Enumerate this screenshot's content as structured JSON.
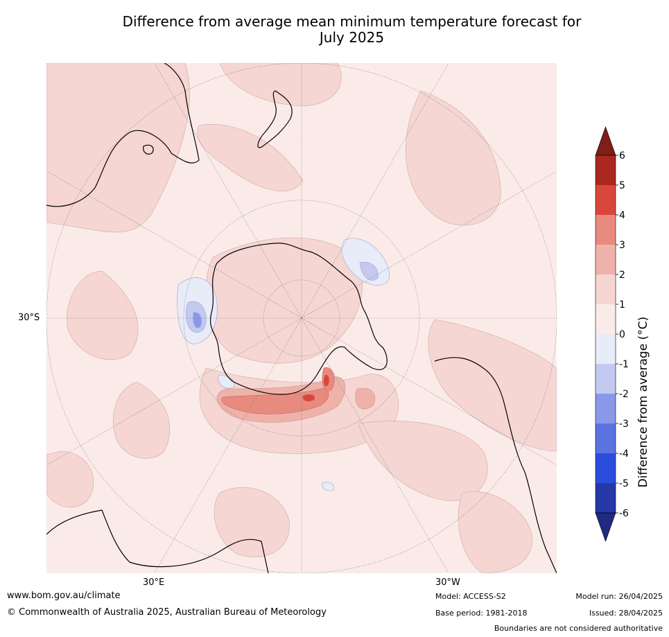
{
  "title": {
    "line1": "Difference from average mean minimum temperature forecast for",
    "line2": "July 2025"
  },
  "map": {
    "projection": "south-polar-stereographic",
    "lat_label": "30°S",
    "lon_labels": [
      "30°E",
      "30°W"
    ],
    "ocean_base_color": "#fbebe8",
    "coastline_color": "#000000"
  },
  "colorbar": {
    "label": "Difference from average (°C)",
    "ticks": [
      "6",
      "5",
      "4",
      "3",
      "2",
      "1",
      "0",
      "-1",
      "-2",
      "-3",
      "-4",
      "-5",
      "-6"
    ],
    "colors": [
      "#7f1f17",
      "#a9271f",
      "#d9473c",
      "#e98a7f",
      "#efb2aa",
      "#f5d6d2",
      "#fbebe8",
      "#e8ebf8",
      "#c3c9ef",
      "#8a98ea",
      "#5c72e0",
      "#2b4ddb",
      "#2637a8",
      "#1f2a80"
    ]
  },
  "footer": {
    "website": "www.bom.gov.au/climate",
    "copyright": "© Commonwealth of Australia 2025, Australian Bureau of Meteorology",
    "model": "Model: ACCESS-S2",
    "base_period": "Base period: 1981-2018",
    "model_run": "Model run: 26/04/2025",
    "issued": "Issued: 28/04/2025",
    "disclaimer": "Boundaries are not considered authoritative"
  }
}
